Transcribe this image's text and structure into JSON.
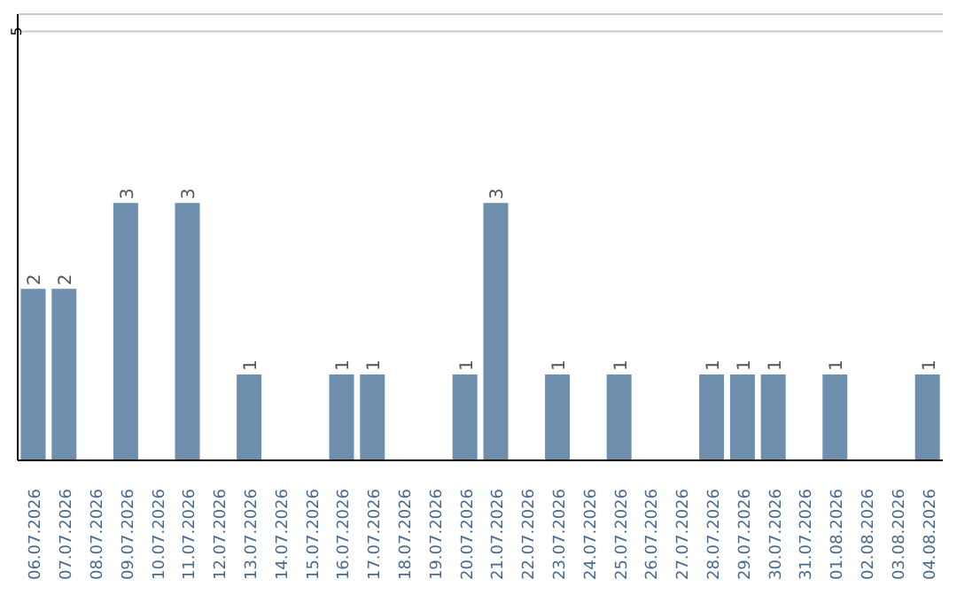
{
  "chart_data": {
    "type": "bar",
    "categories": [
      "06.07.2026",
      "07.07.2026",
      "08.07.2026",
      "09.07.2026",
      "10.07.2026",
      "11.07.2026",
      "12.07.2026",
      "13.07.2026",
      "14.07.2026",
      "15.07.2026",
      "16.07.2026",
      "17.07.2026",
      "18.07.2026",
      "19.07.2026",
      "20.07.2026",
      "21.07.2026",
      "22.07.2026",
      "23.07.2026",
      "24.07.2026",
      "25.07.2026",
      "26.07.2026",
      "27.07.2026",
      "28.07.2026",
      "29.07.2026",
      "30.07.2026",
      "31.07.2026",
      "01.08.2026",
      "02.08.2026",
      "03.08.2026",
      "04.08.2026"
    ],
    "values": [
      2,
      2,
      0,
      3,
      0,
      3,
      0,
      1,
      0,
      0,
      1,
      1,
      0,
      0,
      1,
      3,
      0,
      1,
      0,
      1,
      0,
      0,
      1,
      1,
      1,
      0,
      1,
      0,
      0,
      1
    ],
    "value_labels": [
      "2",
      "2",
      null,
      "3",
      null,
      "3",
      null,
      "1",
      null,
      null,
      "1",
      "1",
      null,
      null,
      "1",
      "3",
      null,
      "1",
      null,
      "1",
      null,
      null,
      "1",
      "1",
      "1",
      null,
      "1",
      null,
      null,
      "1"
    ],
    "color": "#6d8fad",
    "ylim": [
      0,
      5.2
    ],
    "yticks": [
      5
    ],
    "grid": "y"
  }
}
